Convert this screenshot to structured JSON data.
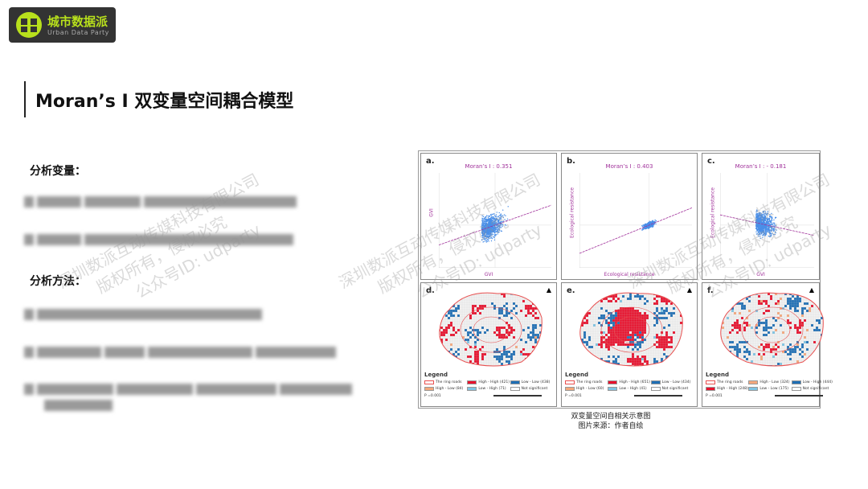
{
  "logo": {
    "name_cn": "城市数据派",
    "name_en": "Urban Data Party"
  },
  "title": "Moran’s I 双变量空间耦合模型",
  "sections": [
    {
      "heading": "分析变量："
    },
    {
      "heading": "分析方法："
    }
  ],
  "figure": {
    "panels": [
      {
        "label": "a.",
        "moran": "Moran’s I : 0.351",
        "xlabel": "GVI",
        "ylabel": "GVI"
      },
      {
        "label": "b.",
        "moran": "Moran’s I : 0.403",
        "xlabel": "Ecological resistance",
        "ylabel": "Ecological resistance"
      },
      {
        "label": "c.",
        "moran": "Moran’s I : - 0.181",
        "xlabel": "GVI",
        "ylabel": "Ecological resistance"
      }
    ],
    "maps": [
      {
        "label": "d.",
        "legend_title": "Legend",
        "items": [
          "The ring roads",
          "High - High (421)",
          "Low - Low (438)",
          "High - Low (84)",
          "Low - High (71)",
          "Not significant"
        ],
        "p": "P =0.001"
      },
      {
        "label": "e.",
        "legend_title": "Legend",
        "items": [
          "The ring roads",
          "High - High (651)",
          "Low - Low (434)",
          "High - Low (60)",
          "Low - High (41)",
          "Not significant"
        ],
        "p": "P =0.001"
      },
      {
        "label": "f.",
        "legend_title": "Legend",
        "items": [
          "The ring roads",
          "High - Low (324)",
          "Low - High (444)",
          "High - High (248)",
          "Low - Low (175)",
          "Not significant"
        ],
        "p": "P =0.001"
      }
    ],
    "caption": "双变量空间自相关示意图",
    "source": "图片来源：作者自绘"
  },
  "colors": {
    "high_high": "#e8112d",
    "low_low": "#1f6fb5",
    "high_low": "#f4a77c",
    "low_high": "#7ec4e3",
    "scatter": "#4a8fe8",
    "fit": "#a0309a",
    "logo_green": "#b8e01c"
  },
  "watermark": [
    "深圳数派互动传媒科技有限公司",
    "版权所有，侵权必究",
    "公众号ID: udparty"
  ]
}
